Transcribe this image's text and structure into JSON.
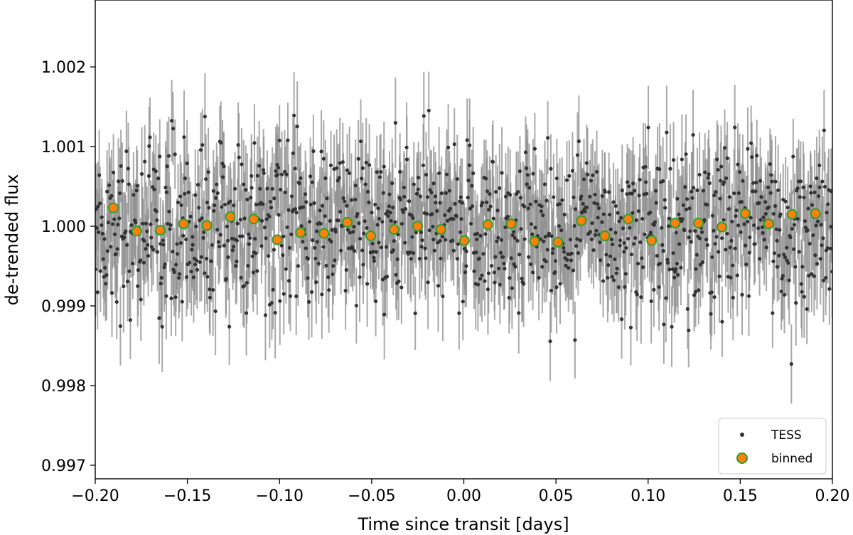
{
  "chart_data": {
    "type": "scatter",
    "title": "",
    "xlabel": "Time since transit [days]",
    "ylabel": "de-trended flux",
    "xlim": [
      -0.2,
      0.2
    ],
    "ylim": [
      0.99683,
      1.00284
    ],
    "xticks": [
      -0.2,
      -0.15,
      -0.1,
      -0.05,
      0.0,
      0.05,
      0.1,
      0.15,
      0.2
    ],
    "xtick_labels": [
      "−0.20",
      "−0.15",
      "−0.10",
      "−0.05",
      "0.00",
      "0.05",
      "0.10",
      "0.15",
      "0.20"
    ],
    "yticks": [
      0.997,
      0.998,
      0.999,
      1.0,
      1.001,
      1.002
    ],
    "ytick_labels": [
      "0.997",
      "0.998",
      "0.999",
      "1.000",
      "1.001",
      "1.002"
    ],
    "grid": false,
    "legend_position": "bottom-right",
    "series": [
      {
        "name": "TESS",
        "kind": "points-with-errorbars",
        "color": "#333333",
        "errorbar_color": "#8c8c8c",
        "n_points": 1150,
        "y_center": 1.0,
        "y_scatter": 0.00052,
        "y_error": 0.00051
      },
      {
        "name": "binned",
        "kind": "binned-points",
        "face_color": "#ff7f0e",
        "edge_color": "#2ca02c",
        "x": [
          -0.1902,
          -0.1775,
          -0.1648,
          -0.1521,
          -0.1394,
          -0.1267,
          -0.114,
          -0.1013,
          -0.0886,
          -0.0759,
          -0.0632,
          -0.0505,
          -0.0378,
          -0.0251,
          -0.0124,
          0.0003,
          0.013,
          0.0257,
          0.0384,
          0.0511,
          0.0638,
          0.0765,
          0.0892,
          0.1019,
          0.1146,
          0.1273,
          0.14,
          0.1527,
          0.1654,
          0.1781,
          0.1908
        ],
        "y": [
          1.00023,
          0.99994,
          0.99995,
          1.00003,
          1.00001,
          1.00012,
          1.00009,
          0.99983,
          0.99992,
          0.99991,
          1.00005,
          0.99988,
          0.99996,
          1.0,
          0.99996,
          0.99982,
          1.00002,
          1.00003,
          0.99981,
          0.9998,
          1.00007,
          0.99988,
          1.00009,
          0.99982,
          1.00004,
          1.00004,
          0.99999,
          1.00016,
          1.00003,
          1.00015,
          1.00016
        ]
      }
    ]
  }
}
